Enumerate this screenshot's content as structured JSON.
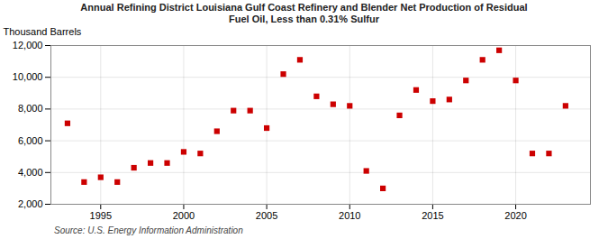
{
  "chart_data": {
    "type": "scatter",
    "title": "Annual Refining District Louisiana Gulf Coast Refinery and Blender Net Production of Residual\nFuel Oil, Less than 0.31% Sulfur",
    "ylabel": "Thousand Barrels",
    "caption": "Source: U.S. Energy Information Administration",
    "x": [
      1993,
      1994,
      1995,
      1996,
      1997,
      1998,
      1999,
      2000,
      2001,
      2002,
      2003,
      2004,
      2005,
      2006,
      2007,
      2008,
      2009,
      2010,
      2011,
      2012,
      2013,
      2014,
      2015,
      2016,
      2017,
      2018,
      2019,
      2020,
      2021,
      2022,
      2023
    ],
    "values": [
      7100,
      3400,
      3700,
      3400,
      4300,
      4600,
      4600,
      5300,
      5200,
      6600,
      7900,
      7900,
      6800,
      10200,
      11100,
      8800,
      8300,
      8200,
      4100,
      3000,
      7600,
      9200,
      8500,
      8600,
      9800,
      11100,
      11700,
      9800,
      5200,
      5200,
      8200
    ],
    "color": "#cc0000",
    "marker": "square",
    "xlim": [
      1992.0,
      2024.5
    ],
    "xticks": [
      1995,
      2000,
      2005,
      2010,
      2015,
      2020
    ],
    "ylim": [
      2000,
      12000
    ],
    "yticks": [
      {
        "value": 2000,
        "label": "2,000"
      },
      {
        "value": 4000,
        "label": "4,000"
      },
      {
        "value": 6000,
        "label": "6,000"
      },
      {
        "value": 8000,
        "label": "8,000"
      },
      {
        "value": 10000,
        "label": "10,000"
      },
      {
        "value": 12000,
        "label": "12,000"
      }
    ],
    "grid": true
  }
}
